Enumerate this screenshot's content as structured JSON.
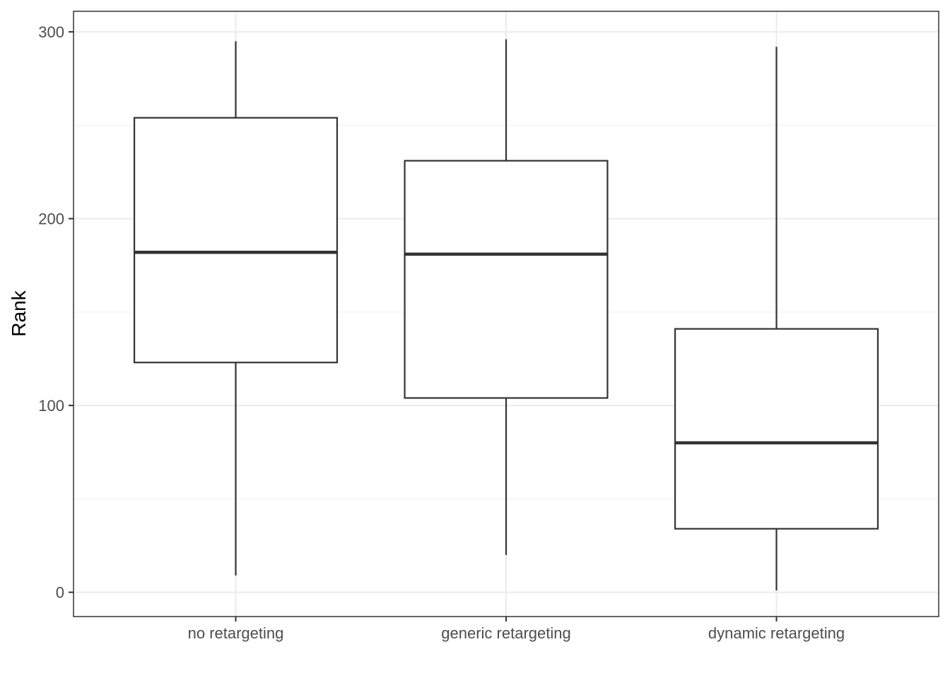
{
  "chart_data": {
    "type": "boxplot",
    "title": "",
    "xlabel": "",
    "ylabel": "Rank",
    "ylim": [
      -13,
      311
    ],
    "yticks": [
      0,
      100,
      200,
      300
    ],
    "ytick_labels": [
      "0",
      "100",
      "200",
      "300"
    ],
    "grid": true,
    "legend": "none",
    "categories": [
      "no retargeting",
      "generic retargeting",
      "dynamic retargeting"
    ],
    "boxes": [
      {
        "category": "no retargeting",
        "whisker_low": 9,
        "q1": 123,
        "median": 182,
        "q3": 254,
        "whisker_high": 295
      },
      {
        "category": "generic retargeting",
        "whisker_low": 20,
        "q1": 104,
        "median": 181,
        "q3": 231,
        "whisker_high": 296
      },
      {
        "category": "dynamic retargeting",
        "whisker_low": 1,
        "q1": 34,
        "median": 80,
        "q3": 141,
        "whisker_high": 292
      }
    ],
    "colors": {
      "box_line": "#333333",
      "grid_major": "#ebebeb",
      "grid_minor": "#f2f2f2",
      "panel_border": "#333333"
    }
  }
}
